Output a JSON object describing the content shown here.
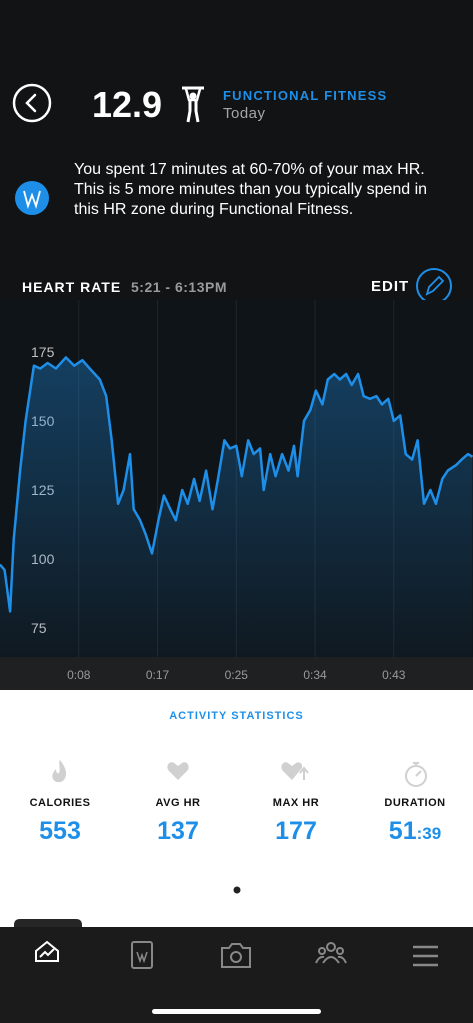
{
  "header": {
    "score": "12.9",
    "activity": "FUNCTIONAL FITNESS",
    "date": "Today"
  },
  "insight": "You spent 17 minutes at 60-70% of your max HR. This is 5 more minutes than you typically spend in this HR zone during Functional Fitness.",
  "heart_rate": {
    "title": "HEART RATE",
    "time_range": "5:21 - 6:13PM",
    "edit": "EDIT"
  },
  "chart_data": {
    "type": "area",
    "color": "#1e8fe8",
    "x": [
      0,
      0.5,
      1.1,
      1.5,
      2.2,
      2.8,
      3.7,
      4.4,
      5.2,
      6.1,
      7.2,
      8.1,
      9.0,
      9.8,
      10.9,
      11.6,
      12.2,
      12.9,
      13.5,
      14.2,
      14.6,
      15.3,
      15.9,
      16.6,
      17.3,
      17.9,
      18.6,
      19.2,
      19.9,
      20.5,
      21.2,
      21.8,
      22.5,
      23.2,
      23.8,
      24.5,
      25.1,
      25.8,
      26.4,
      27.1,
      27.7,
      28.4,
      28.8,
      29.5,
      30.1,
      30.8,
      31.5,
      32.1,
      32.5,
      33.2,
      33.9,
      34.5,
      35.2,
      35.8,
      36.5,
      37.1,
      37.8,
      38.4,
      39.1,
      39.7,
      40.4,
      41.1,
      41.7,
      42.4,
      43.0,
      43.7,
      44.3,
      45.0,
      45.6,
      46.3,
      47.0,
      47.6,
      48.3,
      48.9,
      49.8,
      50.4,
      51.1,
      51.6
    ],
    "values": [
      98,
      96,
      81,
      107,
      132,
      150,
      170,
      169,
      171,
      169,
      173,
      170,
      172,
      169,
      165,
      159,
      143,
      120,
      125,
      138,
      118,
      114,
      109,
      102,
      114,
      123,
      118,
      114,
      125,
      120,
      129,
      121,
      132,
      118,
      129,
      143,
      140,
      141,
      130,
      143,
      138,
      140,
      125,
      138,
      130,
      138,
      132,
      141,
      130,
      150,
      154,
      161,
      156,
      165,
      167,
      165,
      167,
      163,
      167,
      159,
      158,
      159,
      156,
      158,
      150,
      152,
      138,
      136,
      143,
      120,
      125,
      120,
      129,
      132,
      134,
      136,
      138,
      137
    ],
    "xlim": [
      0,
      51.65
    ],
    "ylim": [
      64.5,
      193.8
    ],
    "yticks": [
      75,
      100,
      125,
      150,
      175
    ],
    "xticks": [
      {
        "value": 8.6,
        "label": "0:08"
      },
      {
        "value": 17.2,
        "label": "0:17"
      },
      {
        "value": 25.8,
        "label": "0:25"
      },
      {
        "value": 34.4,
        "label": "0:34"
      },
      {
        "value": 43.0,
        "label": "0:43"
      }
    ],
    "grid": true
  },
  "statistics": {
    "title": "ACTIVITY STATISTICS",
    "items": [
      {
        "label": "CALORIES",
        "value": "553"
      },
      {
        "label": "AVG HR",
        "value": "137"
      },
      {
        "label": "MAX HR",
        "value": "177"
      },
      {
        "label": "DURATION",
        "value": "51",
        "suffix": ":39"
      }
    ]
  }
}
